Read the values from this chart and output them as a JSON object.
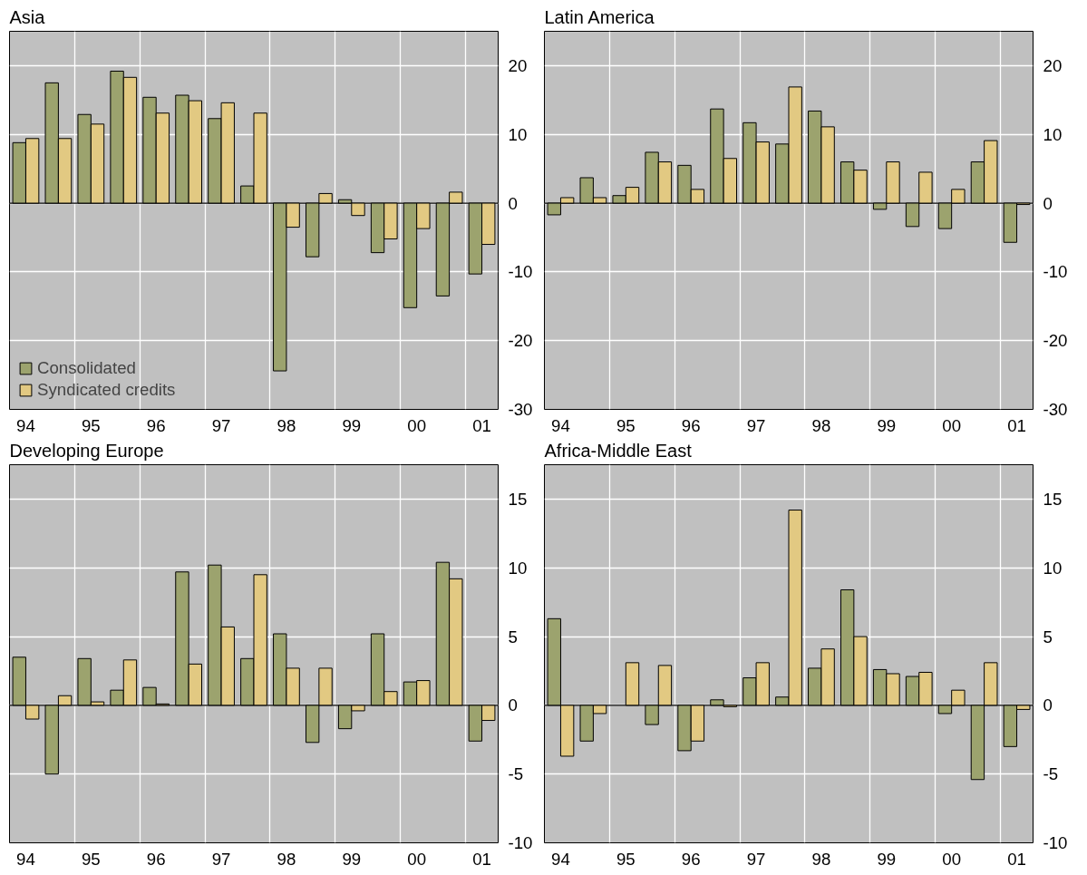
{
  "chart_data": [
    {
      "type": "bar",
      "title": "Asia",
      "categories": [
        "94",
        null,
        "95",
        null,
        "96",
        null,
        "97",
        null,
        "98",
        null,
        "99",
        null,
        "00",
        null,
        "01"
      ],
      "series": [
        {
          "name": "Consolidated",
          "color": "#9ca36e",
          "values": [
            8.8,
            17.5,
            12.9,
            19.2,
            15.4,
            15.7,
            12.3,
            2.5,
            -24.4,
            -7.8,
            0.5,
            -7.2,
            -15.2,
            -13.5,
            -10.3
          ]
        },
        {
          "name": "Syndicated credits",
          "color": "#e2c982",
          "values": [
            9.4,
            9.4,
            11.5,
            18.3,
            13.1,
            14.9,
            14.6,
            13.1,
            -3.5,
            1.4,
            -1.8,
            -5.2,
            -3.7,
            1.6,
            -6.0
          ]
        }
      ],
      "ylim": [
        -30,
        25
      ],
      "yticks": [
        -30,
        -20,
        -10,
        0,
        10,
        20
      ],
      "grid": true,
      "legend": "bottom left"
    },
    {
      "type": "bar",
      "title": "Latin America",
      "categories": [
        "94",
        null,
        "95",
        null,
        "96",
        null,
        "97",
        null,
        "98",
        null,
        "99",
        null,
        "00",
        null,
        "01"
      ],
      "series": [
        {
          "color": "#9ca36e",
          "values": [
            -1.7,
            3.7,
            1.1,
            7.4,
            5.5,
            13.7,
            11.7,
            8.6,
            13.4,
            6.0,
            -0.9,
            -3.4,
            -3.7,
            6.0,
            -5.7
          ]
        },
        {
          "color": "#e2c982",
          "values": [
            0.8,
            0.8,
            2.3,
            6.0,
            2.0,
            6.5,
            8.9,
            16.9,
            11.1,
            4.8,
            6.0,
            4.5,
            2.0,
            9.1,
            -0.2
          ]
        }
      ],
      "ylim": [
        -30,
        25
      ],
      "yticks": [
        -30,
        -20,
        -10,
        0,
        10,
        20
      ],
      "grid": true
    },
    {
      "type": "bar",
      "title": "Developing Europe",
      "categories": [
        "94",
        null,
        "95",
        null,
        "96",
        null,
        "97",
        null,
        "98",
        null,
        "99",
        null,
        "00",
        null,
        "01"
      ],
      "series": [
        {
          "color": "#9ca36e",
          "values": [
            3.5,
            -5.0,
            3.4,
            1.1,
            1.3,
            9.7,
            10.2,
            3.4,
            5.2,
            -2.7,
            -1.7,
            5.2,
            1.7,
            10.4,
            -2.6
          ]
        },
        {
          "color": "#e2c982",
          "values": [
            -1.0,
            0.7,
            0.25,
            3.3,
            0.1,
            3.0,
            5.7,
            9.5,
            2.7,
            2.7,
            -0.4,
            1.0,
            1.8,
            9.2,
            -1.1
          ]
        }
      ],
      "ylim": [
        -10,
        17.5
      ],
      "yticks": [
        -10,
        -5,
        0,
        5,
        10,
        15
      ],
      "grid": true
    },
    {
      "type": "bar",
      "title": "Africa-Middle East",
      "categories": [
        "94",
        null,
        "95",
        null,
        "96",
        null,
        "97",
        null,
        "98",
        null,
        "99",
        null,
        "00",
        null,
        "01"
      ],
      "series": [
        {
          "color": "#9ca36e",
          "values": [
            6.3,
            -2.6,
            null,
            -1.4,
            -3.3,
            0.4,
            2.0,
            0.6,
            2.7,
            8.4,
            2.6,
            2.1,
            -0.6,
            -5.4,
            -3.0
          ]
        },
        {
          "color": "#e2c982",
          "values": [
            -3.7,
            -0.6,
            3.1,
            2.9,
            -2.6,
            -0.1,
            3.1,
            14.2,
            4.1,
            5.0,
            2.3,
            2.4,
            1.1,
            3.1,
            -0.3
          ]
        }
      ],
      "ylim": [
        -10,
        17.5
      ],
      "yticks": [
        -10,
        -5,
        0,
        5,
        10,
        15
      ],
      "grid": true
    }
  ]
}
